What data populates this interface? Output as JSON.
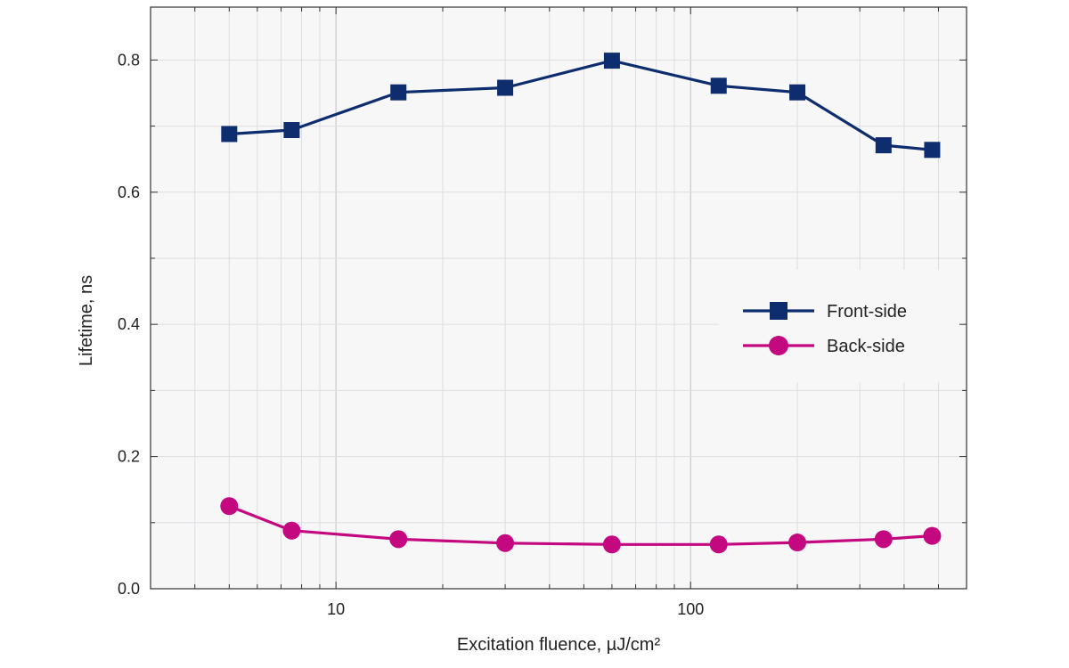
{
  "chart_data": {
    "type": "line",
    "title": "",
    "xlabel": "Excitation fluence, µJ/cm²",
    "ylabel": "Lifetime, ns",
    "xscale": "log",
    "xlim": [
      3,
      600
    ],
    "ylim": [
      0,
      0.88
    ],
    "xticks": [
      {
        "value": 10,
        "label": "10"
      },
      {
        "value": 100,
        "label": "100"
      }
    ],
    "yticks": [
      {
        "value": 0.0,
        "label": "0.0"
      },
      {
        "value": 0.2,
        "label": "0.2"
      },
      {
        "value": 0.4,
        "label": "0.4"
      },
      {
        "value": 0.6,
        "label": "0.6"
      },
      {
        "value": 0.8,
        "label": "0.8"
      }
    ],
    "grid": true,
    "legend_position": "right",
    "series": [
      {
        "name": "Front-side",
        "color": "#0d2d6e",
        "marker": "square",
        "x": [
          5,
          7.5,
          15,
          30,
          60,
          120,
          200,
          350,
          480
        ],
        "y": [
          0.688,
          0.694,
          0.751,
          0.758,
          0.799,
          0.761,
          0.751,
          0.671,
          0.664
        ]
      },
      {
        "name": "Back-side",
        "color": "#c4087f",
        "marker": "circle",
        "x": [
          5,
          7.5,
          15,
          30,
          60,
          120,
          200,
          350,
          480
        ],
        "y": [
          0.125,
          0.088,
          0.075,
          0.069,
          0.067,
          0.067,
          0.07,
          0.075,
          0.08
        ]
      }
    ]
  }
}
